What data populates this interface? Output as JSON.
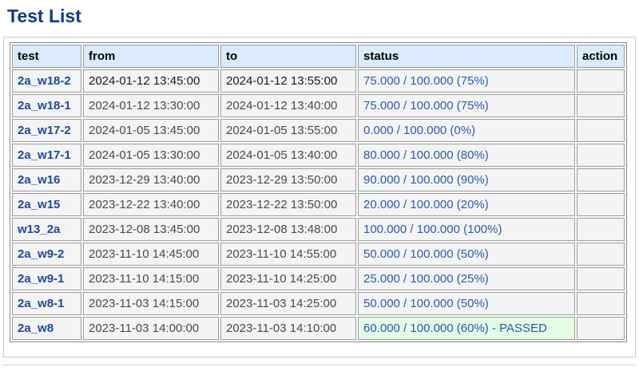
{
  "page": {
    "title": "Test List"
  },
  "table": {
    "headers": {
      "test": "test",
      "from": "from",
      "to": "to",
      "status": "status",
      "action": "action"
    },
    "rows": [
      {
        "test": "2a_w18-2",
        "from": "2024-01-12 13:45:00",
        "to": "2024-01-12 13:55:00",
        "status": "75.000 / 100.000 (75%)",
        "action": ""
      },
      {
        "test": "2a_w18-1",
        "from": "2024-01-12 13:30:00",
        "to": "2024-01-12 13:40:00",
        "status": "75.000 / 100.000 (75%)",
        "action": ""
      },
      {
        "test": "2a_w17-2",
        "from": "2024-01-05 13:45:00",
        "to": "2024-01-05 13:55:00",
        "status": "0.000 / 100.000 (0%)",
        "action": ""
      },
      {
        "test": "2a_w17-1",
        "from": "2024-01-05 13:30:00",
        "to": "2024-01-05 13:40:00",
        "status": "80.000 / 100.000 (80%)",
        "action": ""
      },
      {
        "test": "2a_w16",
        "from": "2023-12-29 13:40:00",
        "to": "2023-12-29 13:50:00",
        "status": "90.000 / 100.000 (90%)",
        "action": ""
      },
      {
        "test": "2a_w15",
        "from": "2023-12-22 13:40:00",
        "to": "2023-12-22 13:50:00",
        "status": "20.000 / 100.000 (20%)",
        "action": ""
      },
      {
        "test": "w13_2a",
        "from": "2023-12-08 13:45:00",
        "to": "2023-12-08 13:48:00",
        "status": "100.000 / 100.000 (100%)",
        "action": ""
      },
      {
        "test": "2a_w9-2",
        "from": "2023-11-10 14:45:00",
        "to": "2023-11-10 14:55:00",
        "status": "50.000 / 100.000 (50%)",
        "action": ""
      },
      {
        "test": "2a_w9-1",
        "from": "2023-11-10 14:15:00",
        "to": "2023-11-10 14:25:00",
        "status": "25.000 / 100.000 (25%)",
        "action": ""
      },
      {
        "test": "2a_w8-1",
        "from": "2023-11-03 14:15:00",
        "to": "2023-11-03 14:25:00",
        "status": "50.000 / 100.000 (50%)",
        "action": ""
      },
      {
        "test": "2a_w8",
        "from": "2023-11-03 14:00:00",
        "to": "2023-11-03 14:10:00",
        "status": "60.000 / 100.000 (60%) - PASSED",
        "action": ""
      }
    ]
  },
  "colors": {
    "title": "#0e3a8a",
    "header_bg": "#dbeafc",
    "test_link": "#1a4aa0",
    "status_text": "#2a5ab8",
    "passed_bg": "#e4fbe4"
  }
}
